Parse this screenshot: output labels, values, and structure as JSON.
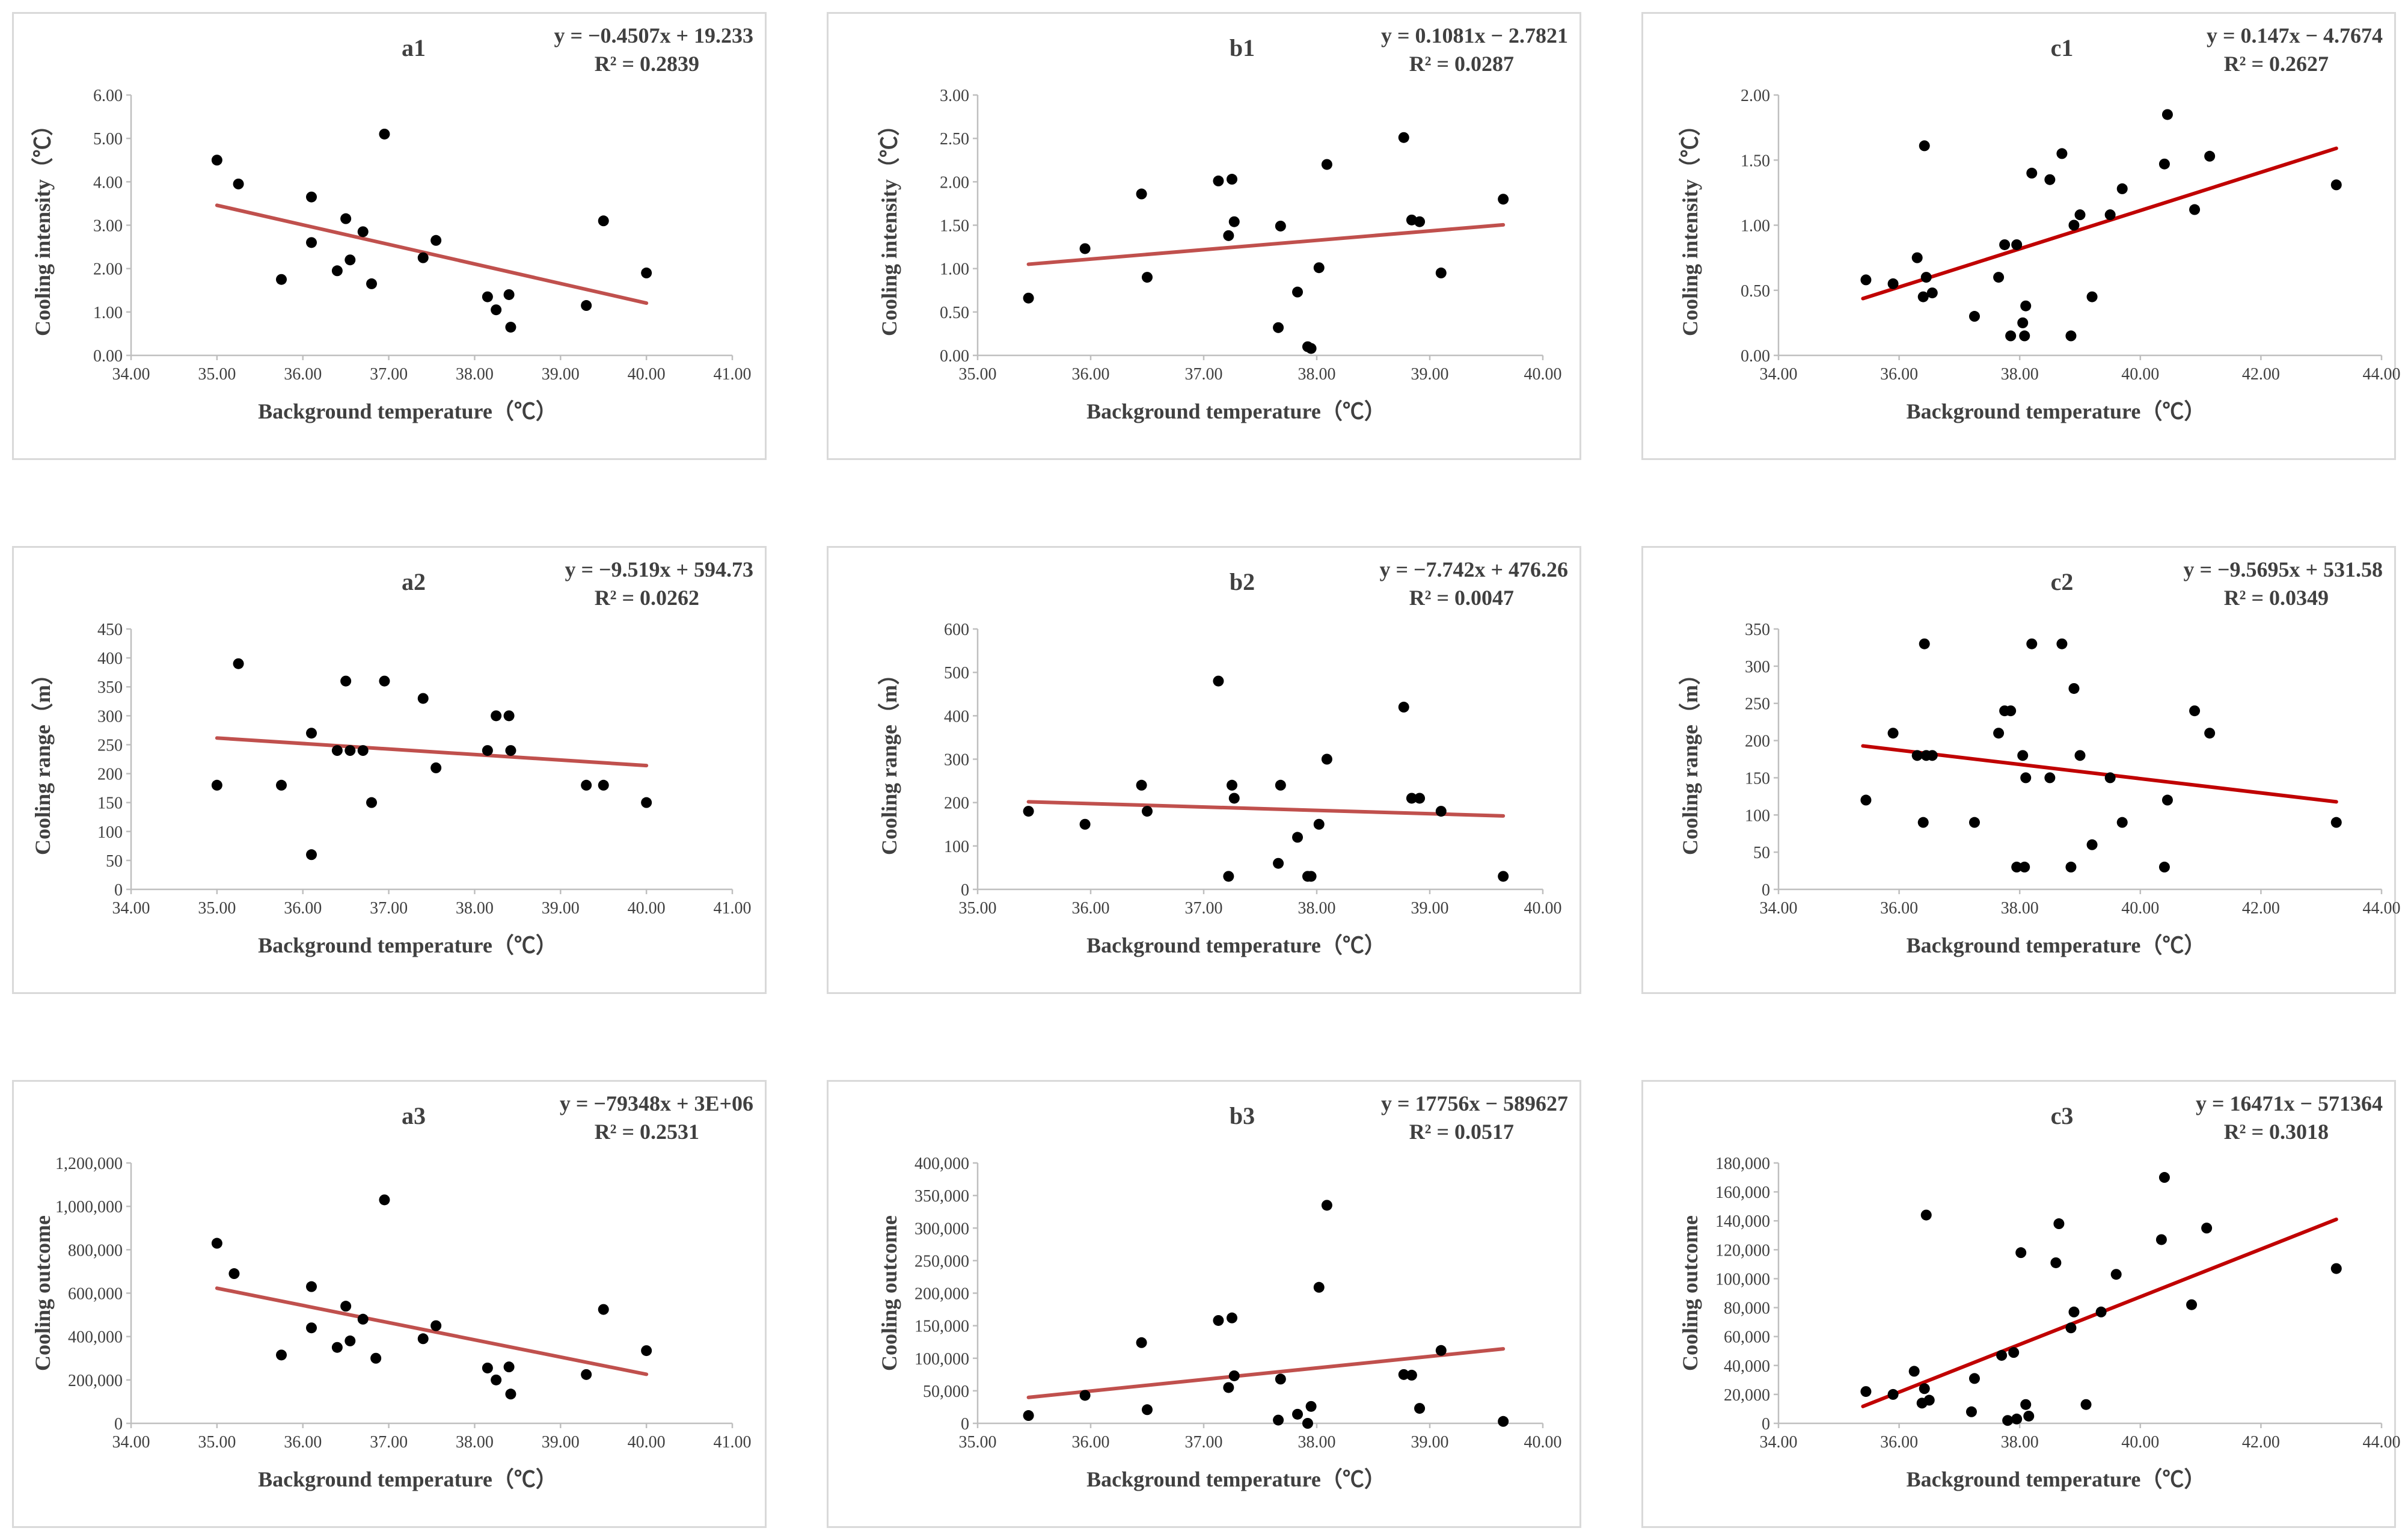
{
  "chart_data": [
    {
      "id": "a1",
      "type": "scatter",
      "title": "a1",
      "equation": "y = −0.4507x + 19.233",
      "r2": "R² = 0.2839",
      "xlabel": "Background temperature（℃）",
      "ylabel": "Cooling intensity（℃）",
      "xlim": [
        34,
        41
      ],
      "ylim": [
        0,
        6
      ],
      "xticks": [
        "34.00",
        "35.00",
        "36.00",
        "37.00",
        "38.00",
        "39.00",
        "40.00",
        "41.00"
      ],
      "yticks": [
        "0.00",
        "1.00",
        "2.00",
        "3.00",
        "4.00",
        "5.00",
        "6.00"
      ],
      "trend": {
        "slope": -0.4507,
        "intercept": 19.233,
        "x0": 35.0,
        "x1": 40.0,
        "color": "#c0504d"
      },
      "x": [
        35.0,
        35.25,
        35.75,
        36.1,
        36.1,
        36.4,
        36.5,
        36.55,
        36.7,
        36.8,
        36.95,
        37.4,
        37.55,
        38.15,
        38.25,
        38.4,
        38.42,
        39.3,
        39.5,
        40.0
      ],
      "y": [
        4.5,
        3.95,
        1.75,
        3.65,
        2.6,
        1.95,
        3.15,
        2.2,
        2.85,
        1.65,
        5.1,
        2.25,
        2.65,
        1.35,
        1.05,
        1.4,
        0.65,
        1.15,
        3.1,
        1.9
      ]
    },
    {
      "id": "b1",
      "type": "scatter",
      "title": "b1",
      "equation": "y = 0.1081x − 2.7821",
      "r2": "R² = 0.0287",
      "xlabel": "Background temperature（℃）",
      "ylabel": "Cooling intensity（℃）",
      "xlim": [
        35,
        40
      ],
      "ylim": [
        0,
        3
      ],
      "xticks": [
        "35.00",
        "36.00",
        "37.00",
        "38.00",
        "39.00",
        "40.00"
      ],
      "yticks": [
        "0.00",
        "0.50",
        "1.00",
        "1.50",
        "2.00",
        "2.50",
        "3.00"
      ],
      "trend": {
        "slope": 0.1081,
        "intercept": -2.7821,
        "x0": 35.45,
        "x1": 39.65,
        "color": "#c0504d"
      },
      "x": [
        35.45,
        35.95,
        36.45,
        36.5,
        37.13,
        37.22,
        37.25,
        37.27,
        37.66,
        37.68,
        37.83,
        37.92,
        37.95,
        38.02,
        38.09,
        38.77,
        38.84,
        38.91,
        39.1,
        39.65
      ],
      "y": [
        0.66,
        1.23,
        1.86,
        0.9,
        2.01,
        1.38,
        2.03,
        1.54,
        0.32,
        1.49,
        0.73,
        0.1,
        0.08,
        1.01,
        2.2,
        2.51,
        1.56,
        1.54,
        0.95,
        1.8
      ]
    },
    {
      "id": "c1",
      "type": "scatter",
      "title": "c1",
      "equation": "y = 0.147x − 4.7674",
      "r2": "R² = 0.2627",
      "xlabel": "Background temperature（℃）",
      "ylabel": "Cooling intensity（℃）",
      "xlim": [
        34,
        44
      ],
      "ylim": [
        0,
        2
      ],
      "xticks": [
        "34.00",
        "36.00",
        "38.00",
        "40.00",
        "42.00",
        "44.00"
      ],
      "yticks": [
        "0.00",
        "0.50",
        "1.00",
        "1.50",
        "2.00"
      ],
      "trend": {
        "slope": 0.147,
        "intercept": -4.7674,
        "x0": 35.4,
        "x1": 43.25,
        "color": "#c00000"
      },
      "x": [
        35.45,
        35.9,
        36.3,
        36.4,
        36.42,
        36.45,
        36.55,
        37.25,
        37.65,
        37.75,
        37.85,
        37.95,
        38.05,
        38.08,
        38.1,
        38.2,
        38.5,
        38.7,
        38.85,
        38.9,
        39.0,
        39.2,
        39.5,
        39.7,
        40.4,
        40.45,
        40.9,
        41.15,
        43.25
      ],
      "y": [
        0.58,
        0.55,
        0.75,
        0.45,
        1.61,
        0.6,
        0.48,
        0.3,
        0.6,
        0.85,
        0.15,
        0.85,
        0.25,
        0.15,
        0.38,
        1.4,
        1.35,
        1.55,
        0.15,
        1.0,
        1.08,
        0.45,
        1.08,
        1.28,
        1.47,
        1.85,
        1.12,
        1.53,
        1.31
      ]
    },
    {
      "id": "a2",
      "type": "scatter",
      "title": "a2",
      "equation": "y = −9.519x + 594.73",
      "r2": "R² = 0.0262",
      "xlabel": "Background temperature（℃）",
      "ylabel": "Cooling range（m）",
      "xlim": [
        34,
        41
      ],
      "ylim": [
        0,
        450
      ],
      "xticks": [
        "34.00",
        "35.00",
        "36.00",
        "37.00",
        "38.00",
        "39.00",
        "40.00",
        "41.00"
      ],
      "yticks": [
        "0",
        "50",
        "100",
        "150",
        "200",
        "250",
        "300",
        "350",
        "400",
        "450"
      ],
      "trend": {
        "slope": -9.519,
        "intercept": 594.73,
        "x0": 35.0,
        "x1": 40.0,
        "color": "#c0504d"
      },
      "x": [
        35.0,
        35.25,
        35.75,
        36.1,
        36.1,
        36.4,
        36.5,
        36.55,
        36.7,
        36.8,
        36.95,
        37.4,
        37.55,
        38.15,
        38.25,
        38.4,
        38.42,
        39.3,
        39.5,
        40.0
      ],
      "y": [
        180,
        390,
        180,
        270,
        60,
        240,
        360,
        240,
        240,
        150,
        360,
        330,
        210,
        240,
        300,
        300,
        240,
        180,
        180,
        150
      ]
    },
    {
      "id": "b2",
      "type": "scatter",
      "title": "b2",
      "equation": "y = −7.742x + 476.26",
      "r2": "R² = 0.0047",
      "xlabel": "Background temperature（℃）",
      "ylabel": "Cooling range（m）",
      "xlim": [
        35,
        40
      ],
      "ylim": [
        0,
        600
      ],
      "xticks": [
        "35.00",
        "36.00",
        "37.00",
        "38.00",
        "39.00",
        "40.00"
      ],
      "yticks": [
        "0",
        "100",
        "200",
        "300",
        "400",
        "500",
        "600"
      ],
      "trend": {
        "slope": -7.742,
        "intercept": 476.26,
        "x0": 35.45,
        "x1": 39.65,
        "color": "#c0504d"
      },
      "x": [
        35.45,
        35.95,
        36.45,
        36.5,
        37.13,
        37.22,
        37.25,
        37.27,
        37.66,
        37.68,
        37.83,
        37.92,
        37.95,
        38.02,
        38.09,
        38.77,
        38.84,
        38.91,
        39.1,
        39.65
      ],
      "y": [
        180,
        150,
        240,
        180,
        480,
        30,
        240,
        210,
        60,
        240,
        120,
        30,
        30,
        150,
        300,
        420,
        210,
        210,
        180,
        30
      ]
    },
    {
      "id": "c2",
      "type": "scatter",
      "title": "c2",
      "equation": "y = −9.5695x + 531.58",
      "r2": "R² = 0.0349",
      "xlabel": "Background temperature（℃）",
      "ylabel": "Cooling range（m）",
      "xlim": [
        34,
        44
      ],
      "ylim": [
        0,
        350
      ],
      "xticks": [
        "34.00",
        "36.00",
        "38.00",
        "40.00",
        "42.00",
        "44.00"
      ],
      "yticks": [
        "0",
        "50",
        "100",
        "150",
        "200",
        "250",
        "300",
        "350"
      ],
      "trend": {
        "slope": -9.5695,
        "intercept": 531.58,
        "x0": 35.4,
        "x1": 43.25,
        "color": "#c00000"
      },
      "x": [
        35.45,
        35.9,
        36.3,
        36.4,
        36.42,
        36.45,
        36.55,
        37.25,
        37.65,
        37.75,
        37.85,
        37.95,
        38.05,
        38.08,
        38.1,
        38.2,
        38.5,
        38.7,
        38.85,
        38.9,
        39.0,
        39.2,
        39.5,
        39.7,
        40.4,
        40.45,
        40.9,
        41.15,
        43.25
      ],
      "y": [
        120,
        210,
        180,
        90,
        330,
        180,
        180,
        90,
        210,
        240,
        240,
        30,
        180,
        30,
        150,
        330,
        150,
        330,
        30,
        270,
        180,
        60,
        150,
        90,
        30,
        120,
        240,
        210,
        90
      ]
    },
    {
      "id": "a3",
      "type": "scatter",
      "title": "a3",
      "equation": "y = −79348x + 3E+06",
      "r2": "R² = 0.2531",
      "xlabel": "Background temperature（℃）",
      "ylabel": "Cooling outcome",
      "xlim": [
        34,
        41
      ],
      "ylim": [
        0,
        1200000
      ],
      "xticks": [
        "34.00",
        "35.00",
        "36.00",
        "37.00",
        "38.00",
        "39.00",
        "40.00",
        "41.00"
      ],
      "yticks": [
        "0",
        "200,000",
        "400,000",
        "600,000",
        "800,000",
        "1,000,000",
        "1,200,000"
      ],
      "trend": {
        "slope": -79348,
        "intercept": 3400000,
        "x0": 35.0,
        "x1": 40.0,
        "color": "#c0504d"
      },
      "x": [
        35.0,
        35.2,
        35.75,
        36.1,
        36.1,
        36.4,
        36.5,
        36.55,
        36.7,
        36.85,
        36.95,
        37.4,
        37.55,
        38.15,
        38.25,
        38.4,
        38.42,
        39.3,
        39.5,
        40.0
      ],
      "y": [
        830000,
        690000,
        315000,
        630000,
        440000,
        350000,
        540000,
        380000,
        480000,
        300000,
        1030000,
        390000,
        450000,
        255000,
        200000,
        260000,
        135000,
        225000,
        525000,
        335000
      ]
    },
    {
      "id": "b3",
      "type": "scatter",
      "title": "b3",
      "equation": "y = 17756x − 589627",
      "r2": "R² = 0.0517",
      "xlabel": "Background temperature（℃）",
      "ylabel": "Cooling outcome",
      "xlim": [
        35,
        40
      ],
      "ylim": [
        0,
        400000
      ],
      "xticks": [
        "35.00",
        "36.00",
        "37.00",
        "38.00",
        "39.00",
        "40.00"
      ],
      "yticks": [
        "0",
        "50,000",
        "100,000",
        "150,000",
        "200,000",
        "250,000",
        "300,000",
        "350,000",
        "400,000"
      ],
      "trend": {
        "slope": 17756,
        "intercept": -589627,
        "x0": 35.45,
        "x1": 39.65,
        "color": "#c0504d"
      },
      "x": [
        35.45,
        35.95,
        36.45,
        36.5,
        37.13,
        37.22,
        37.25,
        37.27,
        37.66,
        37.68,
        37.83,
        37.92,
        37.95,
        38.02,
        38.09,
        38.77,
        38.84,
        38.91,
        39.1,
        39.65
      ],
      "y": [
        12000,
        43000,
        124000,
        21000,
        158000,
        55000,
        162000,
        73000,
        5000,
        68000,
        14000,
        0,
        26000,
        209000,
        335000,
        75000,
        74000,
        23000,
        112000,
        3000
      ]
    },
    {
      "id": "c3",
      "type": "scatter",
      "title": "c3",
      "equation": "y = 16471x − 571364",
      "r2": "R² = 0.3018",
      "xlabel": "Background temperature（℃）",
      "ylabel": "Cooling outcome",
      "xlim": [
        34,
        44
      ],
      "ylim": [
        0,
        180000
      ],
      "xticks": [
        "34.00",
        "36.00",
        "38.00",
        "40.00",
        "42.00",
        "44.00"
      ],
      "yticks": [
        "0",
        "20,000",
        "40,000",
        "60,000",
        "80,000",
        "100,000",
        "120,000",
        "140,000",
        "160,000",
        "180,000"
      ],
      "trend": {
        "slope": 16471,
        "intercept": -571364,
        "x0": 35.4,
        "x1": 43.25,
        "color": "#c00000"
      },
      "x": [
        35.45,
        35.9,
        36.25,
        36.38,
        36.42,
        36.45,
        36.5,
        37.2,
        37.25,
        37.7,
        37.8,
        37.9,
        37.95,
        38.02,
        38.1,
        38.15,
        38.6,
        38.65,
        38.85,
        38.9,
        39.1,
        39.35,
        39.6,
        40.35,
        40.4,
        40.85,
        41.1,
        43.25
      ],
      "y": [
        22000,
        20000,
        36000,
        14000,
        24000,
        144000,
        16000,
        8000,
        31000,
        47000,
        2000,
        49000,
        3000,
        118000,
        13000,
        5000,
        111000,
        138000,
        66000,
        77000,
        13000,
        77000,
        103000,
        127000,
        170000,
        82000,
        135000,
        107000
      ]
    }
  ]
}
